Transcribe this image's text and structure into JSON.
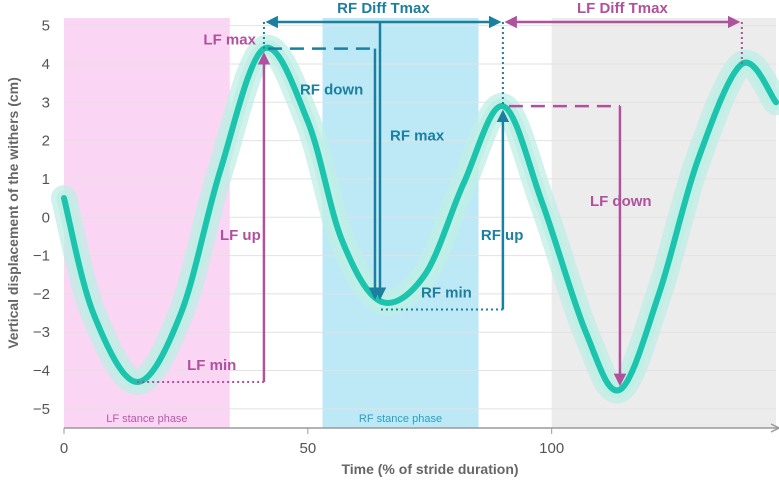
{
  "chart_data": {
    "type": "line",
    "xlabel": "Time (% of stride duration)",
    "ylabel": "Vertical displacement of the withers (cm)",
    "xlim": [
      0,
      146
    ],
    "ylim": [
      -5.5,
      5.2
    ],
    "x_ticks": [
      {
        "value": 0,
        "label": "0"
      },
      {
        "value": 50,
        "label": "50"
      },
      {
        "value": 100,
        "label": "100"
      }
    ],
    "y_ticks": [
      {
        "value": 5,
        "label": "5"
      },
      {
        "value": 4,
        "label": "4"
      },
      {
        "value": 3,
        "label": "3"
      },
      {
        "value": 2,
        "label": "2"
      },
      {
        "value": 1,
        "label": "1"
      },
      {
        "value": 0,
        "label": "0"
      },
      {
        "value": -1,
        "label": "−1"
      },
      {
        "value": -2,
        "label": "−2"
      },
      {
        "value": -3,
        "label": "−3"
      },
      {
        "value": -4,
        "label": "−4"
      },
      {
        "value": -5,
        "label": "−5"
      }
    ],
    "grid": true,
    "series": [
      {
        "x": [
          0,
          6,
          15,
          24,
          32,
          41,
          50,
          57,
          65,
          74,
          82,
          90,
          98,
          107,
          114,
          122,
          130,
          139,
          146
        ],
        "y": [
          0.5,
          -2.5,
          -4.3,
          -2.5,
          1.2,
          4.4,
          2.5,
          -0.6,
          -2.2,
          -1.5,
          0.9,
          2.9,
          0.4,
          -3.0,
          -4.5,
          -2.0,
          1.5,
          4.0,
          3.0
        ],
        "color": "#1dc4ad",
        "band_color": "#bfeee6"
      }
    ],
    "phases": [
      {
        "label": "LF stance phase",
        "x_start": 0,
        "x_end": 34,
        "color": "#fbd6f4",
        "text_color": "#b35aa6"
      },
      {
        "label": "RF stance phase",
        "x_start": 53,
        "x_end": 85,
        "color": "#bde9f7",
        "text_color": "#2a9fc1"
      },
      {
        "label": "",
        "x_start": 100,
        "x_end": 146,
        "color": "#ececec",
        "text_color": "#999999"
      }
    ],
    "annotations": {
      "lf_max": {
        "label": "LF max",
        "x": 41,
        "y": 4.4
      },
      "lf_min": {
        "label": "LF min",
        "x": 15,
        "y": -4.3
      },
      "lf_up": {
        "label": "LF up"
      },
      "rf_down": {
        "label": "RF down"
      },
      "rf_max": {
        "label": "RF max",
        "x": 90,
        "y": 2.9
      },
      "rf_min": {
        "label": "RF min",
        "x": 65,
        "y": -2.2
      },
      "rf_up": {
        "label": "RF up"
      },
      "lf_down": {
        "label": "LF down",
        "x": 114,
        "y": -4.5
      },
      "rf_diff_tmax": {
        "label": "RF Diff Tmax",
        "x_from": 41,
        "x_to": 90
      },
      "lf_diff_tmax": {
        "label": "LF Diff Tmax",
        "x_from": 90,
        "x_to": 139
      }
    },
    "colors": {
      "lf": "#b0519e",
      "rf": "#1b7f9f"
    }
  }
}
